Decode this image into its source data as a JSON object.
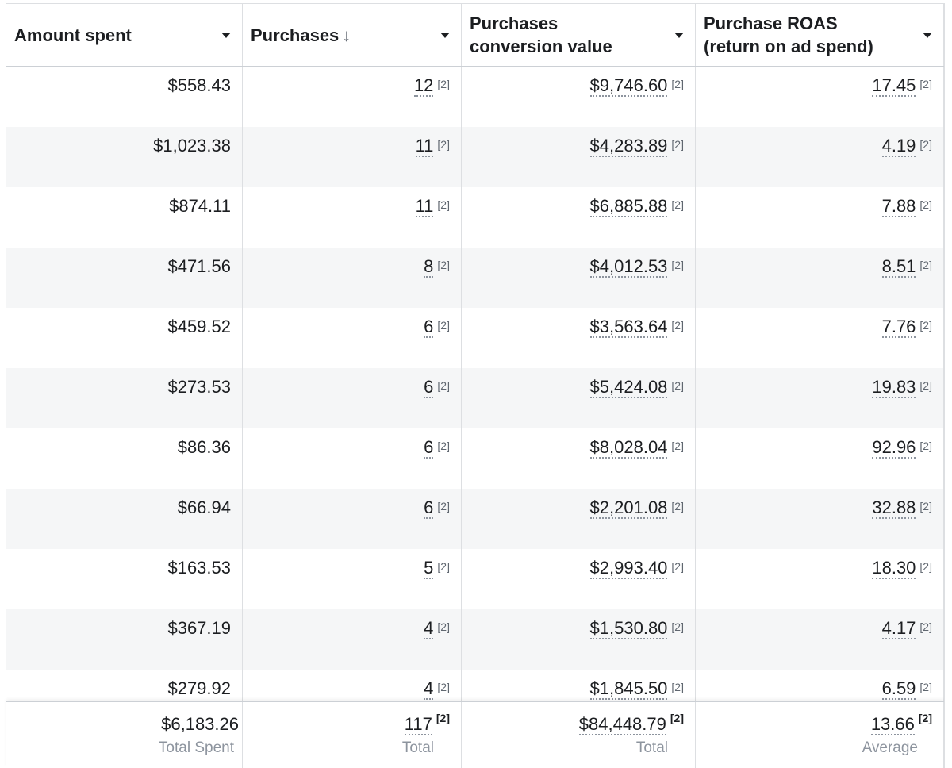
{
  "columns": [
    {
      "label": "Amount spent",
      "sorted": false
    },
    {
      "label": "Purchases",
      "sorted": true
    },
    {
      "label": "Purchases\nconversion value",
      "sorted": false
    },
    {
      "label": "Purchase ROAS\n(return on ad spend)",
      "sorted": false
    }
  ],
  "sort_icon": "↓",
  "note_marker": "[2]",
  "rows": [
    {
      "spent": "$558.43",
      "purchases": "12",
      "value": "$9,746.60",
      "roas": "17.45"
    },
    {
      "spent": "$1,023.38",
      "purchases": "11",
      "value": "$4,283.89",
      "roas": "4.19"
    },
    {
      "spent": "$874.11",
      "purchases": "11",
      "value": "$6,885.88",
      "roas": "7.88"
    },
    {
      "spent": "$471.56",
      "purchases": "8",
      "value": "$4,012.53",
      "roas": "8.51"
    },
    {
      "spent": "$459.52",
      "purchases": "6",
      "value": "$3,563.64",
      "roas": "7.76"
    },
    {
      "spent": "$273.53",
      "purchases": "6",
      "value": "$5,424.08",
      "roas": "19.83"
    },
    {
      "spent": "$86.36",
      "purchases": "6",
      "value": "$8,028.04",
      "roas": "92.96"
    },
    {
      "spent": "$66.94",
      "purchases": "6",
      "value": "$2,201.08",
      "roas": "32.88"
    },
    {
      "spent": "$163.53",
      "purchases": "5",
      "value": "$2,993.40",
      "roas": "18.30"
    },
    {
      "spent": "$367.19",
      "purchases": "4",
      "value": "$1,530.80",
      "roas": "4.17"
    },
    {
      "spent": "$279.92",
      "purchases": "4",
      "value": "$1,845.50",
      "roas": "6.59"
    }
  ],
  "totals": {
    "spent": {
      "value": "$6,183.26",
      "label": "Total Spent"
    },
    "purchases": {
      "value": "117",
      "label": "Total"
    },
    "value": {
      "value": "$84,448.79",
      "label": "Total"
    },
    "roas": {
      "value": "13.66",
      "label": "Average"
    }
  }
}
